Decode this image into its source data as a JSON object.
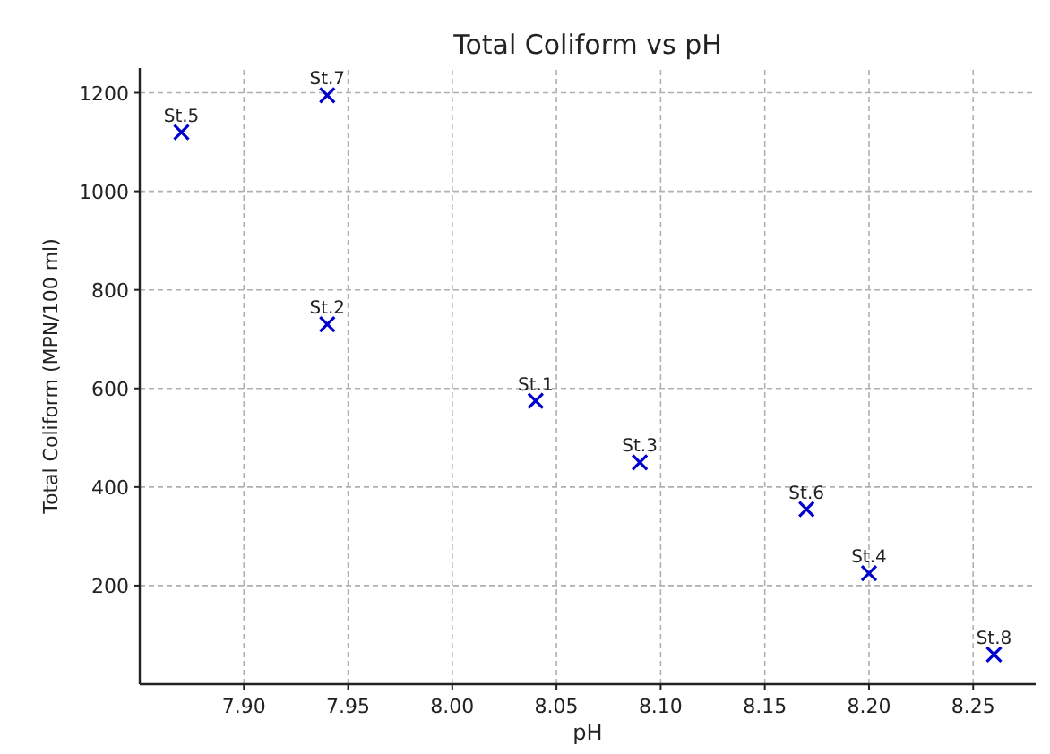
{
  "chart_data": {
    "type": "scatter",
    "title": "Total Coliform vs pH",
    "xlabel": "pH",
    "ylabel": "Total Coliform (MPN/100 ml)",
    "x": [
      8.04,
      7.94,
      8.09,
      8.2,
      7.87,
      8.17,
      7.94,
      8.26
    ],
    "series": [
      {
        "color": "#0000cc",
        "values": [
          575,
          730,
          450,
          225,
          1120,
          355,
          1195,
          60
        ]
      }
    ],
    "annotations": [
      {
        "text": "St.1",
        "x": 8.04,
        "y": 575
      },
      {
        "text": "St.2",
        "x": 7.94,
        "y": 730
      },
      {
        "text": "St.3",
        "x": 8.09,
        "y": 450
      },
      {
        "text": "St.4",
        "x": 8.2,
        "y": 225
      },
      {
        "text": "St.5",
        "x": 7.87,
        "y": 1120
      },
      {
        "text": "St.6",
        "x": 8.17,
        "y": 355
      },
      {
        "text": "St.7",
        "x": 7.94,
        "y": 1195
      },
      {
        "text": "St.8",
        "x": 8.26,
        "y": 60
      }
    ],
    "xlim": [
      7.85,
      8.28
    ],
    "ylim": [
      0,
      1250
    ],
    "xticks": [
      {
        "value": 7.9,
        "label": "7.90"
      },
      {
        "value": 7.95,
        "label": "7.95"
      },
      {
        "value": 8.0,
        "label": "8.00"
      },
      {
        "value": 8.05,
        "label": "8.05"
      },
      {
        "value": 8.1,
        "label": "8.10"
      },
      {
        "value": 8.15,
        "label": "8.15"
      },
      {
        "value": 8.2,
        "label": "8.20"
      },
      {
        "value": 8.25,
        "label": "8.25"
      }
    ],
    "yticks": [
      200,
      400,
      600,
      800,
      1000,
      1200
    ],
    "grid": true,
    "marker": "cross"
  }
}
